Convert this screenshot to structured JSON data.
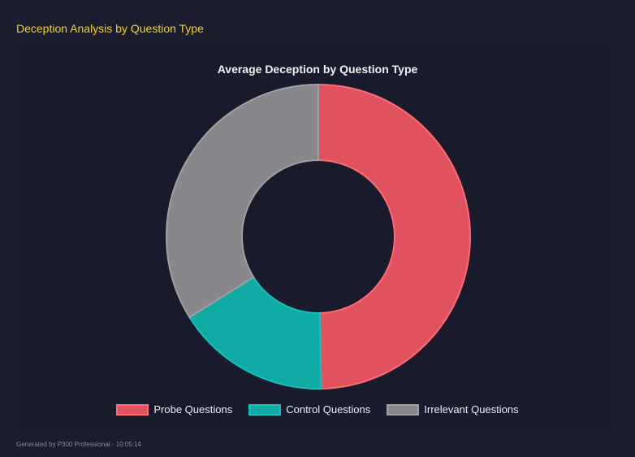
{
  "header": {
    "title": "Deception Analysis by Question Type"
  },
  "chart_data": {
    "type": "doughnut",
    "title": "Average Deception by Question Type",
    "categories": [
      "Probe Questions",
      "Control Questions",
      "Irrelevant Questions"
    ],
    "values": [
      49.7,
      16.4,
      33.9
    ],
    "colors": [
      "#e0535e",
      "#0faaa3",
      "#88888c"
    ],
    "border_colors": [
      "#ff6b74",
      "#14c2ba",
      "#a0a0a4"
    ],
    "legend": "bottom"
  },
  "footer": {
    "text": "Generated by P300 Professional - 10:05:14"
  }
}
